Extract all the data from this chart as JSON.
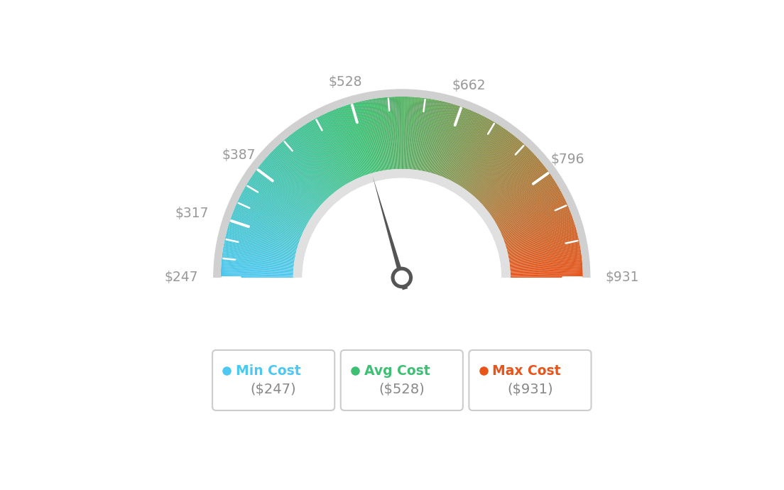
{
  "min_val": 247,
  "max_val": 931,
  "avg_val": 528,
  "label_values": [
    247,
    317,
    387,
    528,
    662,
    796,
    931
  ],
  "label_texts": [
    "$247",
    "$317",
    "$387",
    "$528",
    "$662",
    "$796",
    "$931"
  ],
  "min_cost_label": "Min Cost",
  "avg_cost_label": "Avg Cost",
  "max_cost_label": "Max Cost",
  "min_cost_val": "($247)",
  "avg_cost_val": "($528)",
  "max_cost_val": "($931)",
  "min_color": "#4DC8F0",
  "avg_color": "#3DBF74",
  "max_color": "#E8541A",
  "background_color": "#ffffff",
  "needle_color": "#555555",
  "label_color": "#999999"
}
